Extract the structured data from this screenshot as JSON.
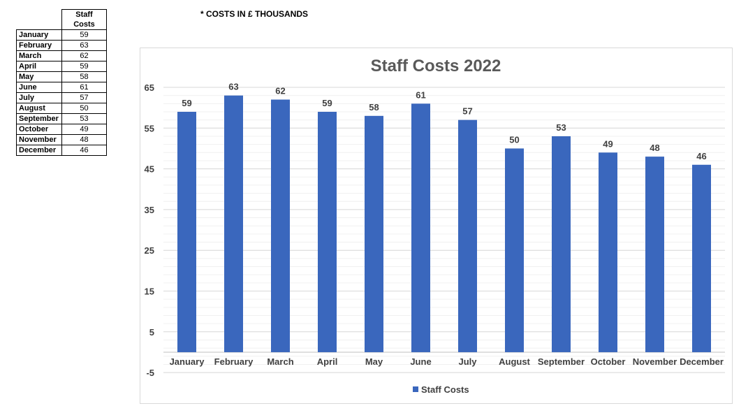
{
  "table": {
    "header": "Staff Costs",
    "rows": [
      {
        "month": "January",
        "value": "59"
      },
      {
        "month": "February",
        "value": "63"
      },
      {
        "month": "March",
        "value": "62"
      },
      {
        "month": "April",
        "value": "59"
      },
      {
        "month": "May",
        "value": "58"
      },
      {
        "month": "June",
        "value": "61"
      },
      {
        "month": "July",
        "value": "57"
      },
      {
        "month": "August",
        "value": "50"
      },
      {
        "month": "September",
        "value": "53"
      },
      {
        "month": "October",
        "value": "49"
      },
      {
        "month": "November",
        "value": "48"
      },
      {
        "month": "December",
        "value": "46"
      }
    ]
  },
  "note": "* COSTS IN £ THOUSANDS",
  "chart_data": {
    "type": "bar",
    "title": "Staff Costs 2022",
    "categories": [
      "January",
      "February",
      "March",
      "April",
      "May",
      "June",
      "July",
      "August",
      "September",
      "October",
      "November",
      "December"
    ],
    "series": [
      {
        "name": "Staff Costs",
        "values": [
          59,
          63,
          62,
          59,
          58,
          61,
          57,
          50,
          53,
          49,
          48,
          46
        ],
        "color": "#3a67bd"
      }
    ],
    "yticks": [
      -5,
      5,
      15,
      25,
      35,
      45,
      55,
      65
    ],
    "ylim": [
      -5,
      65
    ],
    "baseline": 0,
    "gridlines": true,
    "legend_position": "bottom",
    "xlabel": "",
    "ylabel": ""
  }
}
